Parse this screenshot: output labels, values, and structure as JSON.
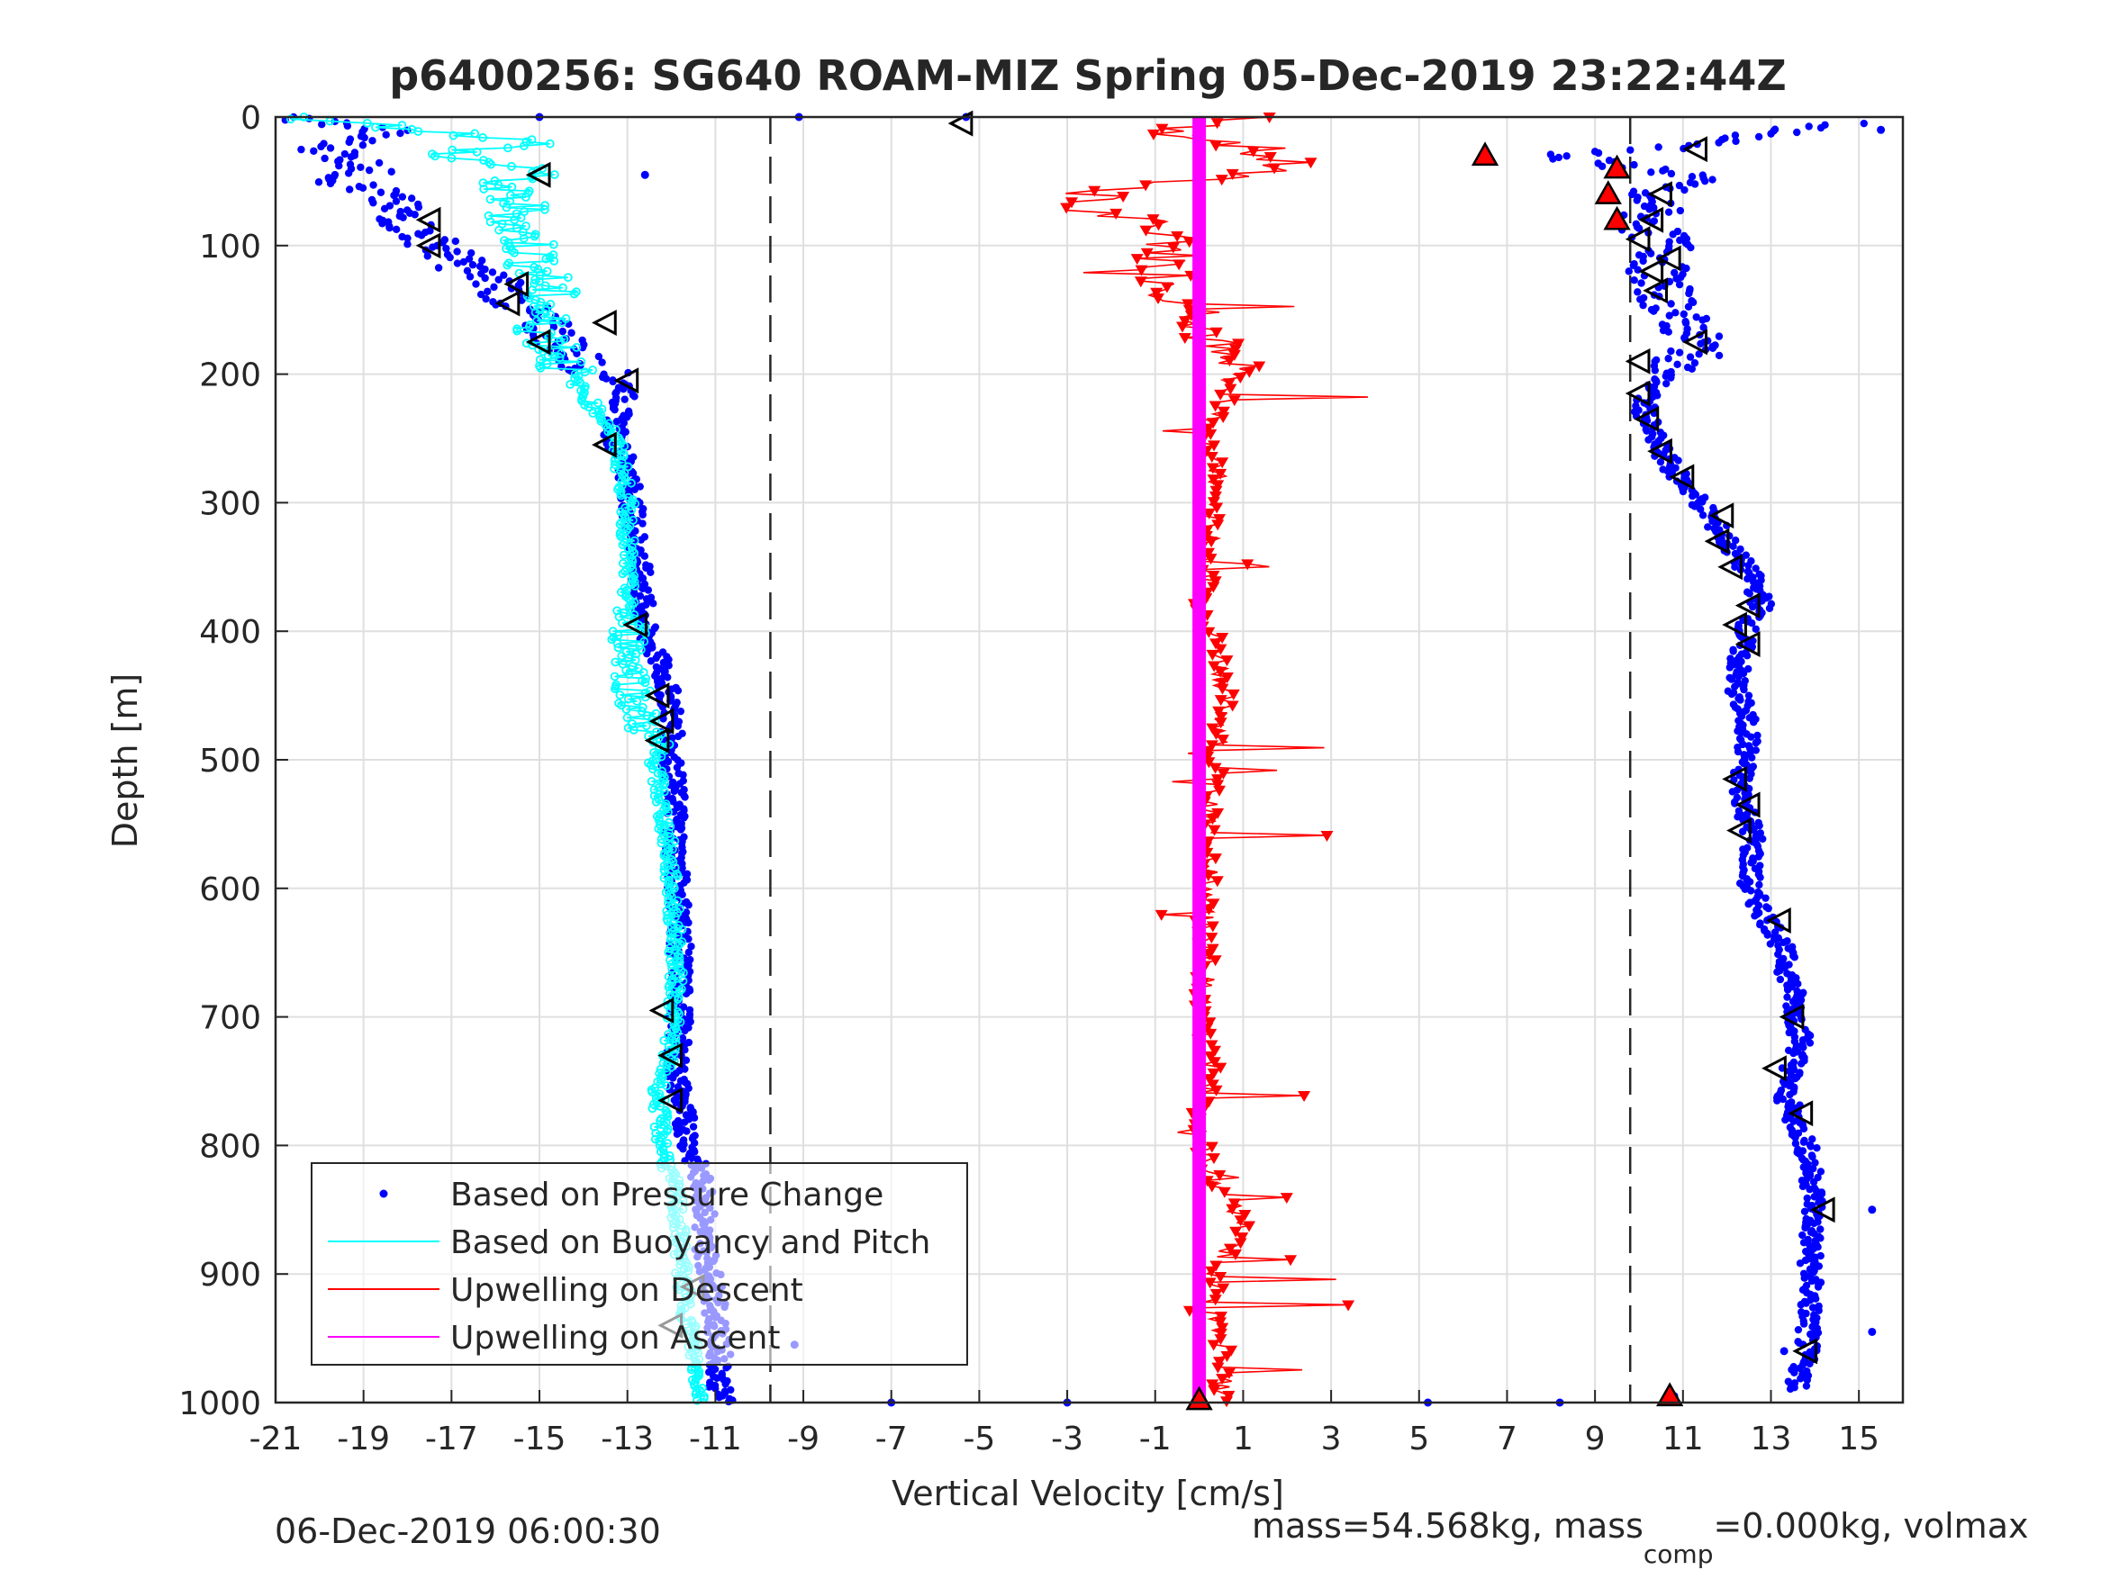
{
  "chart_data": {
    "type": "scatter",
    "title": "p6400256: SG640 ROAM-MIZ Spring 05-Dec-2019 23:22:44Z",
    "xlabel": "Vertical Velocity [cm/s]",
    "ylabel": "Depth [m]",
    "xlim": [
      -21,
      16
    ],
    "ylim": [
      0,
      1000
    ],
    "y_reversed": true,
    "xticks": [
      -21,
      -19,
      -17,
      -15,
      -13,
      -11,
      -9,
      -7,
      -5,
      -3,
      -1,
      1,
      3,
      5,
      7,
      9,
      11,
      13,
      15
    ],
    "xtick_labels": [
      "-21",
      "-19",
      "-17",
      "-15",
      "-13",
      "-11",
      "-9",
      "-7",
      "-5",
      "-3",
      "-1",
      "1",
      "3",
      "5",
      "7",
      "9",
      "11",
      "13",
      "15"
    ],
    "yticks": [
      0,
      100,
      200,
      300,
      400,
      500,
      600,
      700,
      800,
      900,
      1000
    ],
    "ytick_labels": [
      "0",
      "100",
      "200",
      "300",
      "400",
      "500",
      "600",
      "700",
      "800",
      "900",
      "1000"
    ],
    "grid": true,
    "legend_position": "bottom-left",
    "reference_lines_x": [
      -9.75,
      9.8
    ],
    "footer_left": "06-Dec-2019 06:00:30",
    "footer_right_prefix": "mass=54.568kg, mass",
    "footer_right_sub": "comp",
    "footer_right_suffix": "=0.000kg, volmax",
    "colors": {
      "pressure": "#0000ff",
      "buoyancy": "#00ffff",
      "descent": "#ff0000",
      "ascent": "#ff00ff",
      "marker_fill": "#ff0000",
      "marker_stroke": "#000000",
      "reference_line": "#262626"
    },
    "series": [
      {
        "name": "Based on Pressure Change",
        "style": "dots",
        "segments": [
          {
            "depth": [
              0,
              10,
              25,
              40,
              50,
              60,
              75,
              90,
              100,
              115,
              130,
              150,
              170,
              190,
              210,
              230,
              250,
              270,
              300,
              330,
              360,
              400,
              430,
              460,
              500,
              540,
              580,
              620,
              660,
              700,
              740,
              780,
              810,
              840,
              870,
              900,
              930,
              960,
              990,
              1000
            ],
            "velocity": [
              -20.8,
              -18.5,
              -19.8,
              -18.8,
              -19.5,
              -18.6,
              -18.2,
              -17.8,
              -17.3,
              -16.8,
              -15.9,
              -15.4,
              -14.6,
              -14.1,
              -13.0,
              -13.2,
              -13.3,
              -13.0,
              -12.9,
              -12.8,
              -12.7,
              -12.6,
              -12.2,
              -12.0,
              -12.0,
              -11.9,
              -11.9,
              -11.8,
              -11.8,
              -11.8,
              -11.9,
              -11.7,
              -11.5,
              -11.2,
              -11.3,
              -11.1,
              -11.0,
              -10.9,
              -10.9,
              -10.8
            ]
          },
          {
            "depth": [
              5,
              15,
              25,
              30,
              35,
              45,
              55,
              60,
              70,
              80,
              90,
              100,
              120,
              140,
              160,
              180,
              200,
              220,
              240,
              260,
              280,
              300,
              320,
              340,
              360,
              380,
              400,
              440,
              480,
              520,
              560,
              600,
              640,
              680,
              720,
              760,
              800,
              840,
              880,
              920,
              960,
              990
            ],
            "velocity": [
              14.8,
              12.5,
              10.6,
              7.8,
              9.0,
              11.2,
              10.8,
              9.8,
              10.5,
              10.0,
              10.3,
              10.7,
              10.4,
              10.6,
              11.0,
              11.4,
              10.6,
              10.1,
              10.2,
              10.5,
              10.9,
              11.4,
              11.8,
              12.2,
              12.6,
              12.8,
              12.4,
              12.2,
              12.5,
              12.3,
              12.6,
              12.5,
              13.2,
              13.5,
              13.7,
              13.3,
              13.8,
              14.0,
              13.9,
              13.9,
              13.8,
              13.6
            ]
          }
        ],
        "outliers": [
          [
            -9.1,
            0
          ],
          [
            -5.3,
            0
          ],
          [
            -7.0,
            1000
          ],
          [
            -3.0,
            1000
          ],
          [
            5.2,
            1000
          ],
          [
            8.2,
            1000
          ],
          [
            10.8,
            995
          ],
          [
            -12.6,
            45
          ],
          [
            -15.0,
            0
          ],
          [
            -9.2,
            955
          ],
          [
            15.3,
            850
          ],
          [
            15.3,
            945
          ],
          [
            15.5,
            10
          ],
          [
            13.8,
            860
          ],
          [
            13.3,
            960
          ]
        ]
      },
      {
        "name": "Based on Buoyancy and Pitch",
        "style": "line-dots",
        "depth": [
          0,
          10,
          20,
          30,
          40,
          55,
          70,
          85,
          100,
          120,
          140,
          160,
          180,
          200,
          220,
          240,
          260,
          300,
          340,
          380,
          420,
          460,
          490,
          520,
          560,
          600,
          640,
          680,
          720,
          760,
          800,
          840,
          880,
          920,
          960,
          1000
        ],
        "velocity": [
          -20.5,
          -17.5,
          -15.0,
          -17.5,
          -15.0,
          -16.0,
          -15.4,
          -15.6,
          -15.2,
          -15.0,
          -14.8,
          -15.0,
          -14.6,
          -14.3,
          -13.9,
          -13.4,
          -13.2,
          -13.0,
          -13.0,
          -13.0,
          -12.9,
          -12.8,
          -12.4,
          -12.3,
          -12.1,
          -12.0,
          -11.9,
          -11.9,
          -12.0,
          -12.3,
          -12.2,
          -11.9,
          -11.8,
          -11.7,
          -11.5,
          -11.3
        ]
      },
      {
        "name": "Upwelling on Descent",
        "style": "line-triangles-down",
        "depth": [
          0,
          10,
          20,
          30,
          40,
          50,
          60,
          70,
          80,
          90,
          100,
          120,
          140,
          160,
          180,
          200,
          220,
          250,
          280,
          300,
          340,
          380,
          420,
          460,
          500,
          540,
          580,
          620,
          660,
          700,
          740,
          780,
          820,
          860,
          900,
          930,
          960,
          990
        ],
        "velocity": [
          1.5,
          -1.0,
          1.0,
          1.5,
          2.0,
          -0.5,
          -2.5,
          -3.0,
          -1.5,
          -1.0,
          -0.5,
          -0.8,
          -0.3,
          0.4,
          0.2,
          0.8,
          0.5,
          0.2,
          0.4,
          0.3,
          0.2,
          0.1,
          0.5,
          0.6,
          0.4,
          0.2,
          0.3,
          0.1,
          0.2,
          0.0,
          0.3,
          0.0,
          0.2,
          1.0,
          0.4,
          0.3,
          0.6,
          0.5
        ]
      },
      {
        "name": "Upwelling on Ascent",
        "style": "thick-line",
        "depth": [
          0,
          1000
        ],
        "velocity": [
          0.0,
          0.0
        ]
      }
    ],
    "red_triangle_markers": [
      [
        6.5,
        30
      ],
      [
        9.5,
        40
      ],
      [
        9.3,
        60
      ],
      [
        9.5,
        80
      ],
      [
        10.7,
        995
      ],
      [
        0.0,
        998
      ]
    ],
    "open_triangle_markers_left": [
      [
        -15.0,
        45
      ],
      [
        -17.5,
        80
      ],
      [
        -17.5,
        100
      ],
      [
        -15.5,
        130
      ],
      [
        -15.7,
        145
      ],
      [
        -13.5,
        160
      ],
      [
        -15.0,
        175
      ],
      [
        -13.0,
        205
      ],
      [
        -13.5,
        255
      ],
      [
        -12.8,
        395
      ],
      [
        -12.3,
        450
      ],
      [
        -12.2,
        470
      ],
      [
        -12.3,
        485
      ],
      [
        -12.2,
        695
      ],
      [
        -12.0,
        730
      ],
      [
        -12.0,
        765
      ],
      [
        -11.5,
        910
      ],
      [
        -12.0,
        940
      ],
      [
        -5.4,
        5
      ],
      [
        11.3,
        25
      ],
      [
        10.5,
        60
      ],
      [
        10.3,
        80
      ],
      [
        10.0,
        95
      ],
      [
        10.7,
        110
      ],
      [
        10.3,
        120
      ],
      [
        10.4,
        135
      ],
      [
        11.3,
        175
      ],
      [
        10.0,
        190
      ],
      [
        10.0,
        215
      ],
      [
        10.2,
        235
      ],
      [
        10.5,
        260
      ],
      [
        11.0,
        280
      ],
      [
        11.9,
        310
      ],
      [
        11.8,
        330
      ],
      [
        12.1,
        350
      ],
      [
        12.5,
        380
      ],
      [
        12.2,
        395
      ],
      [
        12.5,
        410
      ],
      [
        12.2,
        515
      ],
      [
        12.5,
        535
      ],
      [
        12.3,
        555
      ],
      [
        13.2,
        625
      ],
      [
        13.5,
        700
      ],
      [
        13.1,
        740
      ],
      [
        13.7,
        775
      ],
      [
        14.2,
        850
      ],
      [
        13.8,
        960
      ]
    ]
  }
}
